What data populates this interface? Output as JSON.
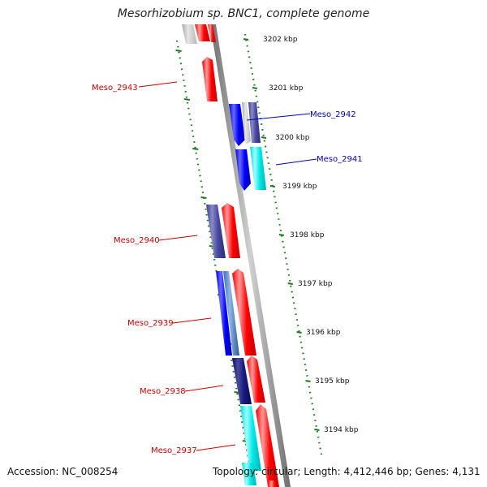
{
  "title": "Mesorhizobium sp. BNC1, complete genome",
  "accession": "Accession: NC_008254",
  "summary": "Topology: circular; Length: 4,412,446 bp; Genes: 4,131",
  "colors": {
    "ruler": "#1f7a1f",
    "backbone": "#8c8c8c",
    "forward_label": "#cc0000",
    "reverse_label": "#0000bb"
  },
  "kbp_ticks": [
    "3202 kbp",
    "3201 kbp",
    "3200 kbp",
    "3199 kbp",
    "3198 kbp",
    "3197 kbp",
    "3196 kbp",
    "3195 kbp",
    "3194 kbp"
  ],
  "genes": [
    {
      "name": "Meso_2943",
      "strand": "+"
    },
    {
      "name": "Meso_2942",
      "strand": "-"
    },
    {
      "name": "Meso_2941",
      "strand": "-"
    },
    {
      "name": "Meso_2940",
      "strand": "+"
    },
    {
      "name": "Meso_2939",
      "strand": "+"
    },
    {
      "name": "Meso_2938",
      "strand": "+"
    },
    {
      "name": "Meso_2937",
      "strand": "+"
    }
  ]
}
